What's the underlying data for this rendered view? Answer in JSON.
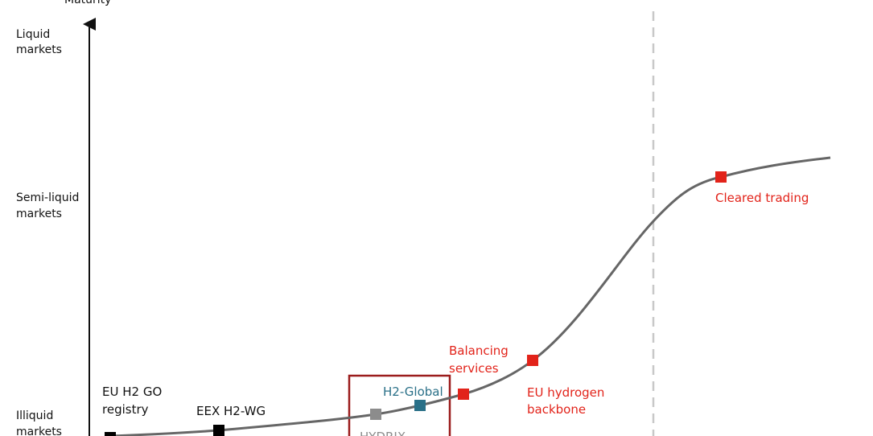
{
  "axis_label": "Maturity",
  "levels": [
    {
      "lines": [
        "Liquid",
        "markets"
      ]
    },
    {
      "lines": [
        "Semi-liquid",
        "markets"
      ]
    },
    {
      "lines": [
        "Illiquid",
        "markets"
      ]
    }
  ],
  "milestones": [
    {
      "lines": [
        "EU H2 GO",
        "registry"
      ]
    },
    {
      "lines": [
        "EEX H2-WG"
      ]
    },
    {
      "lines": [
        "HYDRIX"
      ]
    },
    {
      "lines": [
        "H2-Global"
      ]
    },
    {
      "lines": [
        "Balancing",
        "services"
      ]
    },
    {
      "lines": [
        "EU hydrogen",
        "backbone"
      ]
    },
    {
      "lines": [
        "Cleared trading"
      ]
    }
  ]
}
